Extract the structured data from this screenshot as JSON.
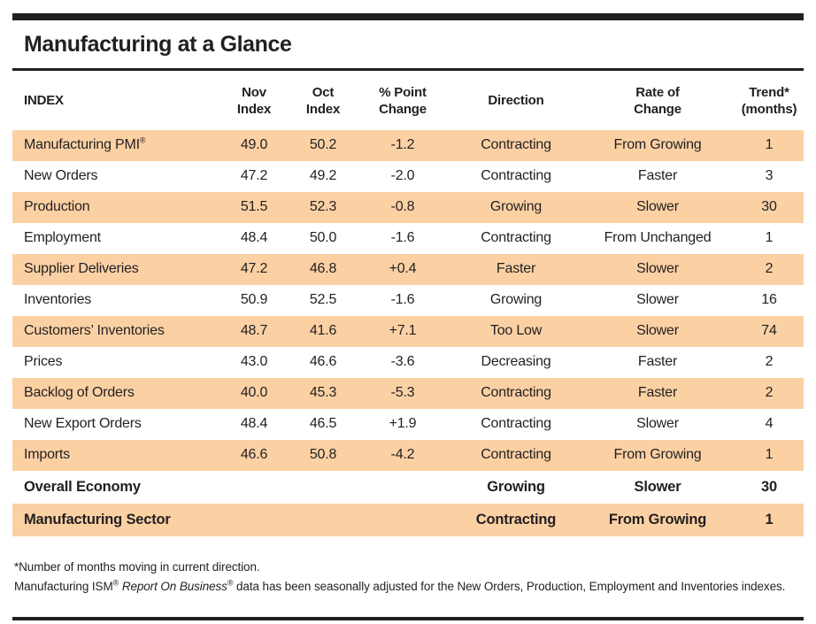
{
  "page": {
    "title": "Manufacturing at a Glance"
  },
  "colors": {
    "row_shade": "#fbd1a4",
    "rule_black": "#231f20"
  },
  "table": {
    "columns": [
      {
        "key": "index",
        "label": "INDEX"
      },
      {
        "key": "nov",
        "label": "Nov\nIndex"
      },
      {
        "key": "oct",
        "label": "Oct\nIndex"
      },
      {
        "key": "change",
        "label": "% Point\nChange"
      },
      {
        "key": "direction",
        "label": "Direction"
      },
      {
        "key": "rate",
        "label": "Rate of\nChange"
      },
      {
        "key": "trend",
        "label": "Trend*\n(months)"
      }
    ],
    "rows": [
      {
        "label": "Manufacturing PMI",
        "label_sup": "®",
        "nov": "49.0",
        "oct": "50.2",
        "change": "-1.2",
        "direction": "Contracting",
        "rate": "From Growing",
        "trend": "1",
        "shaded": true,
        "bold": false
      },
      {
        "label": "New Orders",
        "nov": "47.2",
        "oct": "49.2",
        "change": "-2.0",
        "direction": "Contracting",
        "rate": "Faster",
        "trend": "3",
        "shaded": false,
        "bold": false
      },
      {
        "label": "Production",
        "nov": "51.5",
        "oct": "52.3",
        "change": "-0.8",
        "direction": "Growing",
        "rate": "Slower",
        "trend": "30",
        "shaded": true,
        "bold": false
      },
      {
        "label": "Employment",
        "nov": "48.4",
        "oct": "50.0",
        "change": "-1.6",
        "direction": "Contracting",
        "rate": "From Unchanged",
        "trend": "1",
        "shaded": false,
        "bold": false
      },
      {
        "label": "Supplier Deliveries",
        "nov": "47.2",
        "oct": "46.8",
        "change": "+0.4",
        "direction": "Faster",
        "rate": "Slower",
        "trend": "2",
        "shaded": true,
        "bold": false
      },
      {
        "label": "Inventories",
        "nov": "50.9",
        "oct": "52.5",
        "change": "-1.6",
        "direction": "Growing",
        "rate": "Slower",
        "trend": "16",
        "shaded": false,
        "bold": false
      },
      {
        "label": "Customers’ Inventories",
        "nov": "48.7",
        "oct": "41.6",
        "change": "+7.1",
        "direction": "Too Low",
        "rate": "Slower",
        "trend": "74",
        "shaded": true,
        "bold": false
      },
      {
        "label": "Prices",
        "nov": "43.0",
        "oct": "46.6",
        "change": "-3.6",
        "direction": "Decreasing",
        "rate": "Faster",
        "trend": "2",
        "shaded": false,
        "bold": false
      },
      {
        "label": "Backlog of Orders",
        "nov": "40.0",
        "oct": "45.3",
        "change": "-5.3",
        "direction": "Contracting",
        "rate": "Faster",
        "trend": "2",
        "shaded": true,
        "bold": false
      },
      {
        "label": "New Export Orders",
        "nov": "48.4",
        "oct": "46.5",
        "change": "+1.9",
        "direction": "Contracting",
        "rate": "Slower",
        "trend": "4",
        "shaded": false,
        "bold": false
      },
      {
        "label": "Imports",
        "nov": "46.6",
        "oct": "50.8",
        "change": "-4.2",
        "direction": "Contracting",
        "rate": "From Growing",
        "trend": "1",
        "shaded": true,
        "bold": false
      },
      {
        "label": "Overall Economy",
        "nov": "",
        "oct": "",
        "change": "",
        "direction": "Growing",
        "rate": "Slower",
        "trend": "30",
        "shaded": false,
        "bold": true
      },
      {
        "label": "Manufacturing Sector",
        "nov": "",
        "oct": "",
        "change": "",
        "direction": "Contracting",
        "rate": "From Growing",
        "trend": "1",
        "shaded": true,
        "bold": true
      }
    ]
  },
  "footnotes": {
    "line1": "*Number of months moving in current direction.",
    "line2_parts": [
      {
        "t": "Manufacturing ISM"
      },
      {
        "t": "®",
        "sup": true
      },
      {
        "t": " "
      },
      {
        "t": "Report On Business",
        "italic": true
      },
      {
        "t": "®",
        "sup": true
      },
      {
        "t": " data has been seasonally adjusted for the New Orders, Production, Employment and Inventories indexes."
      }
    ]
  }
}
